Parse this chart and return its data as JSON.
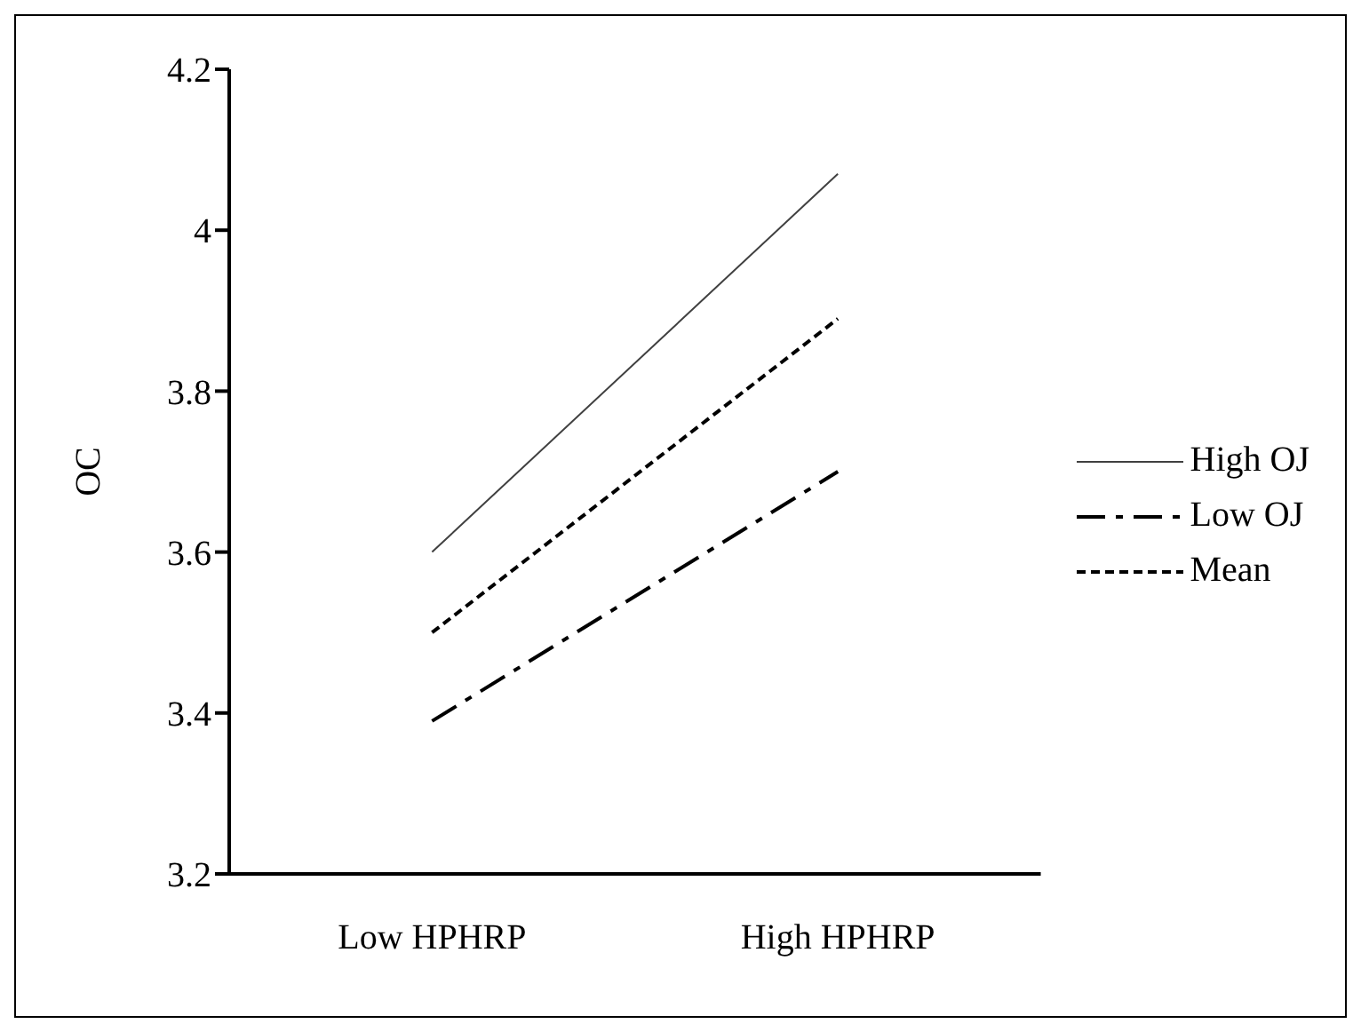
{
  "chart_data": {
    "type": "line",
    "ylabel": "OC",
    "categories": [
      "Low HPHRP",
      "High HPHRP"
    ],
    "series": [
      {
        "name": "High OJ",
        "color": "#404040",
        "values": [
          3.6,
          4.07
        ],
        "line_style": "solid"
      },
      {
        "name": "Low OJ",
        "color": "#000000",
        "values": [
          3.39,
          3.7
        ],
        "line_style": "dashdot"
      },
      {
        "name": "Mean",
        "color": "#000000",
        "values": [
          3.5,
          3.89
        ],
        "line_style": "dashed"
      }
    ],
    "ylim": [
      3.2,
      4.2
    ],
    "yticks": [
      3.2,
      3.4,
      3.6,
      3.8,
      4,
      4.2
    ],
    "grid": false,
    "legend": "right",
    "marker": "none"
  }
}
